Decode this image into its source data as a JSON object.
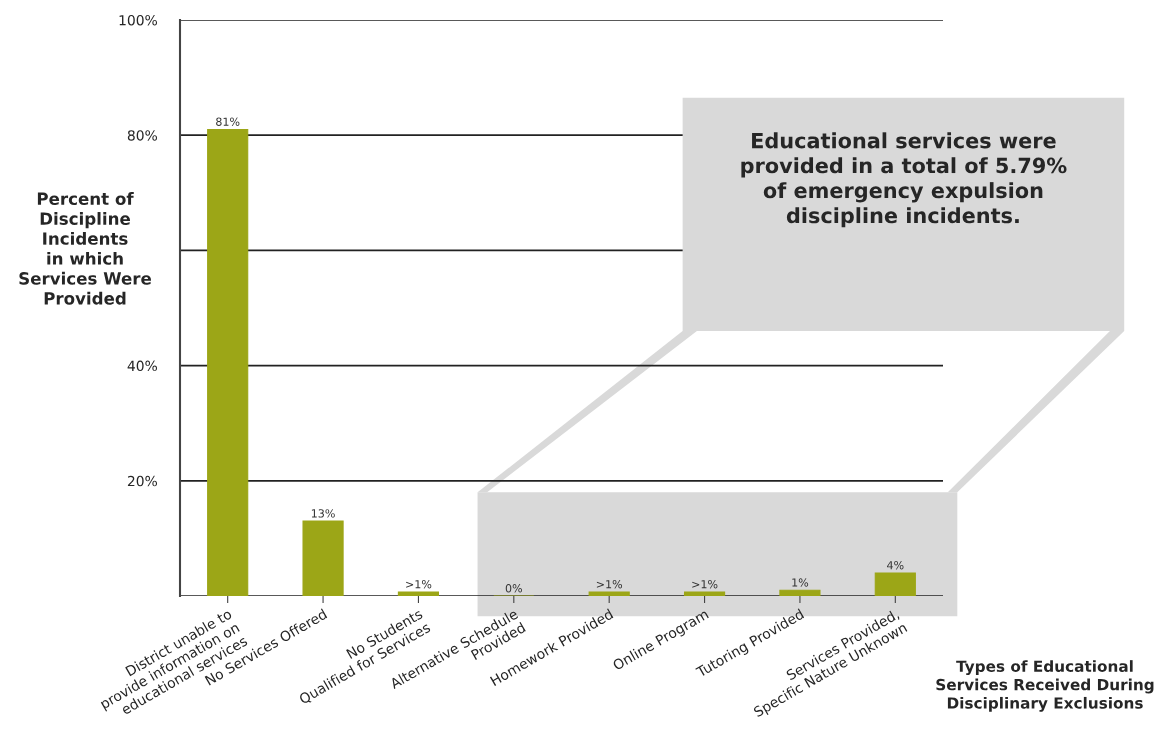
{
  "chart_data": {
    "type": "bar",
    "ylabel": "Percent of\nDiscipline\nIncidents\nin which\nServices Were\nProvided",
    "xlabel": "Types of Educational\nServices Received During\nDisciplinary Exclusions",
    "categories": [
      "District unable to\nprovide information on\neducational services",
      "No Services Offered",
      "No Students\nQualified for Services",
      "Alternative Schedule\nProvided",
      "Homework Provided",
      "Online Program",
      "Tutoring Provided",
      "Services Provided,\nSpecific Nature Unknown"
    ],
    "values": [
      81,
      13,
      0.7,
      0,
      0.7,
      0.7,
      1,
      4
    ],
    "value_labels": [
      "81%",
      "13%",
      ">1%",
      "0%",
      ">1%",
      ">1%",
      "1%",
      "4%"
    ],
    "color": "#9ca617",
    "ylim": [
      0,
      100
    ],
    "yticks": [
      {
        "value": 0,
        "label": null
      },
      {
        "value": 20,
        "label": "20%"
      },
      {
        "value": 40,
        "label": "40%"
      },
      {
        "value": 60,
        "label": null
      },
      {
        "value": 80,
        "label": "80%"
      },
      {
        "value": 100,
        "label": "100%"
      }
    ],
    "grid": "y",
    "annotations": [
      "Educational services were\nprovided in a total of 5.79%\nof emergency expulsion\ndiscipline incidents."
    ]
  }
}
